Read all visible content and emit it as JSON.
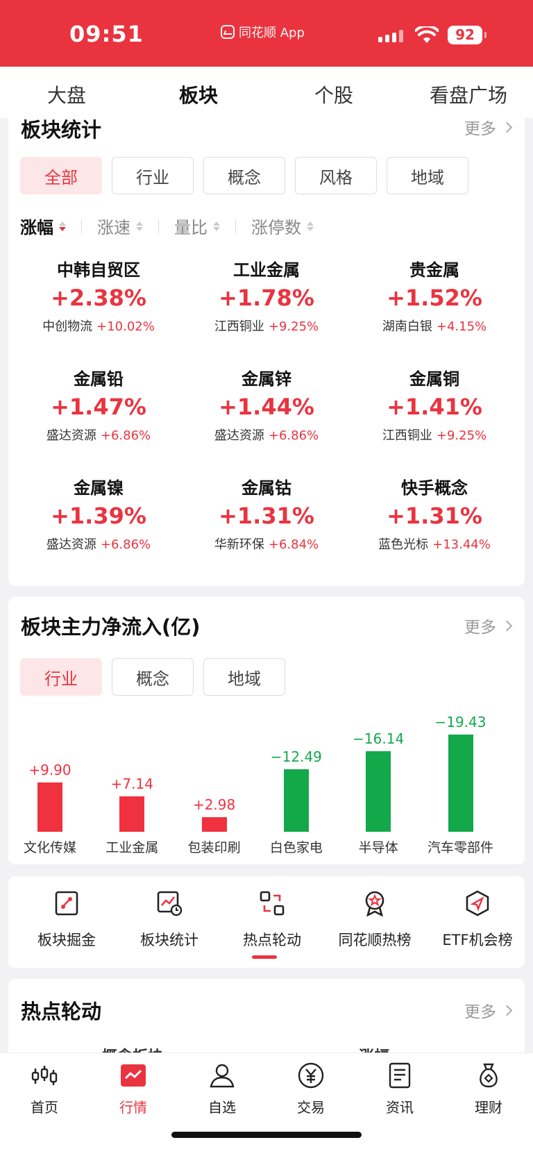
{
  "status": {
    "time": "09:51",
    "app_name": "同花顺 App",
    "battery": "92"
  },
  "top_tabs": [
    "大盘",
    "板块",
    "个股",
    "看盘广场"
  ],
  "stats": {
    "title": "板块统计",
    "more": "更多",
    "chips": [
      "全部",
      "行业",
      "概念",
      "风格",
      "地域"
    ],
    "sort": [
      "涨幅",
      "涨速",
      "量比",
      "涨停数"
    ],
    "items": [
      {
        "name": "中韩自贸区",
        "pct": "+2.38%",
        "lead": "中创物流",
        "lead_pct": "+10.02%"
      },
      {
        "name": "工业金属",
        "pct": "+1.78%",
        "lead": "江西铜业",
        "lead_pct": "+9.25%"
      },
      {
        "name": "贵金属",
        "pct": "+1.52%",
        "lead": "湖南白银",
        "lead_pct": "+4.15%"
      },
      {
        "name": "金属铅",
        "pct": "+1.47%",
        "lead": "盛达资源",
        "lead_pct": "+6.86%"
      },
      {
        "name": "金属锌",
        "pct": "+1.44%",
        "lead": "盛达资源",
        "lead_pct": "+6.86%"
      },
      {
        "name": "金属铜",
        "pct": "+1.41%",
        "lead": "江西铜业",
        "lead_pct": "+9.25%"
      },
      {
        "name": "金属镍",
        "pct": "+1.39%",
        "lead": "盛达资源",
        "lead_pct": "+6.86%"
      },
      {
        "name": "金属钴",
        "pct": "+1.31%",
        "lead": "华新环保",
        "lead_pct": "+6.84%"
      },
      {
        "name": "快手概念",
        "pct": "+1.31%",
        "lead": "蓝色光标",
        "lead_pct": "+13.44%"
      }
    ]
  },
  "flow": {
    "title": "板块主力净流入(亿)",
    "more": "更多",
    "chips": [
      "行业",
      "概念",
      "地域"
    ]
  },
  "chart_data": {
    "type": "bar",
    "categories": [
      "文化传媒",
      "工业金属",
      "包装印刷",
      "白色家电",
      "半导体",
      "汽车零部件"
    ],
    "values": [
      9.9,
      7.14,
      2.98,
      -12.49,
      -16.14,
      -19.43
    ],
    "labels": [
      "+9.90",
      "+7.14",
      "+2.98",
      "−12.49",
      "−16.14",
      "−19.43"
    ],
    "colors": {
      "positive": "#f0313f",
      "negative": "#13a84a"
    }
  },
  "shortcuts": [
    {
      "label": "板块掘金",
      "icon": "sector-mining-icon"
    },
    {
      "label": "板块统计",
      "icon": "sector-stats-icon"
    },
    {
      "label": "热点轮动",
      "icon": "hot-rotation-icon"
    },
    {
      "label": "同花顺热榜",
      "icon": "hot-rank-icon"
    },
    {
      "label": "ETF机会榜",
      "icon": "etf-opportunity-icon"
    }
  ],
  "hot": {
    "title": "热点轮动",
    "more": "更多",
    "col1": "概念板块",
    "col2": "涨幅"
  },
  "nav": [
    {
      "label": "首页",
      "icon": "candlestick-icon"
    },
    {
      "label": "行情",
      "icon": "market-chart-icon"
    },
    {
      "label": "自选",
      "icon": "user-icon"
    },
    {
      "label": "交易",
      "icon": "yuan-icon"
    },
    {
      "label": "资讯",
      "icon": "document-icon"
    },
    {
      "label": "理财",
      "icon": "money-bag-icon"
    }
  ],
  "colors": {
    "accent": "#e93440",
    "rise": "#e93440",
    "fall": "#13a84a"
  }
}
